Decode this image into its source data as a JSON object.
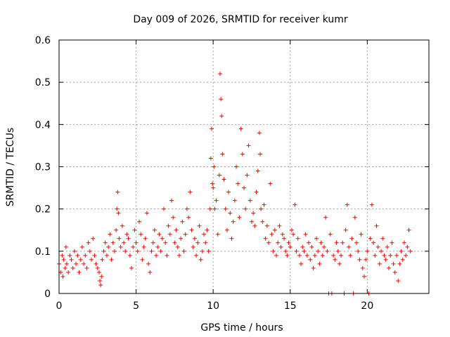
{
  "chart_data": {
    "type": "scatter",
    "title": "Day 009 of 2026, SRMTID for receiver kumr",
    "xlabel": "GPS time / hours",
    "ylabel": "SRMTID / TECUs",
    "xlim": [
      0,
      24
    ],
    "ylim": [
      0,
      0.6
    ],
    "xticks": [
      0,
      5,
      10,
      15,
      20
    ],
    "yticks": [
      0,
      0.1,
      0.2,
      0.3,
      0.4,
      0.5,
      0.6
    ],
    "grid": true,
    "marker": "+",
    "color": "#ff0000",
    "series": [
      {
        "name": "SRMTID",
        "points": [
          [
            0.0,
            0.07
          ],
          [
            0.1,
            0.05
          ],
          [
            0.2,
            0.09
          ],
          [
            0.25,
            0.04
          ],
          [
            0.3,
            0.08
          ],
          [
            0.4,
            0.06
          ],
          [
            0.45,
            0.11
          ],
          [
            0.5,
            0.07
          ],
          [
            0.6,
            0.05
          ],
          [
            0.7,
            0.09
          ],
          [
            0.8,
            0.08
          ],
          [
            0.9,
            0.06
          ],
          [
            1.0,
            0.1
          ],
          [
            1.1,
            0.07
          ],
          [
            1.2,
            0.09
          ],
          [
            1.3,
            0.05
          ],
          [
            1.4,
            0.08
          ],
          [
            1.5,
            0.11
          ],
          [
            1.6,
            0.07
          ],
          [
            1.7,
            0.09
          ],
          [
            1.8,
            0.06
          ],
          [
            1.9,
            0.12
          ],
          [
            2.0,
            0.1
          ],
          [
            2.1,
            0.08
          ],
          [
            2.2,
            0.13
          ],
          [
            2.3,
            0.09
          ],
          [
            2.4,
            0.07
          ],
          [
            2.5,
            0.06
          ],
          [
            2.6,
            0.05
          ],
          [
            2.65,
            0.03
          ],
          [
            2.7,
            0.02
          ],
          [
            2.75,
            0.04
          ],
          [
            2.8,
            0.08
          ],
          [
            2.9,
            0.1
          ],
          [
            3.0,
            0.12
          ],
          [
            3.1,
            0.09
          ],
          [
            3.2,
            0.11
          ],
          [
            3.3,
            0.14
          ],
          [
            3.4,
            0.08
          ],
          [
            3.5,
            0.12
          ],
          [
            3.6,
            0.1
          ],
          [
            3.7,
            0.15
          ],
          [
            3.75,
            0.2
          ],
          [
            3.8,
            0.24
          ],
          [
            3.85,
            0.19
          ],
          [
            3.9,
            0.13
          ],
          [
            4.0,
            0.11
          ],
          [
            4.1,
            0.16
          ],
          [
            4.2,
            0.12
          ],
          [
            4.3,
            0.1
          ],
          [
            4.4,
            0.14
          ],
          [
            4.5,
            0.13
          ],
          [
            4.6,
            0.09
          ],
          [
            4.7,
            0.06
          ],
          [
            4.8,
            0.11
          ],
          [
            4.9,
            0.15
          ],
          [
            5.0,
            0.12
          ],
          [
            5.1,
            0.1
          ],
          [
            5.2,
            0.17
          ],
          [
            5.3,
            0.14
          ],
          [
            5.4,
            0.08
          ],
          [
            5.5,
            0.11
          ],
          [
            5.6,
            0.13
          ],
          [
            5.7,
            0.19
          ],
          [
            5.8,
            0.07
          ],
          [
            5.9,
            0.05
          ],
          [
            6.0,
            0.1
          ],
          [
            6.1,
            0.12
          ],
          [
            6.2,
            0.15
          ],
          [
            6.3,
            0.09
          ],
          [
            6.4,
            0.11
          ],
          [
            6.5,
            0.14
          ],
          [
            6.6,
            0.1
          ],
          [
            6.7,
            0.13
          ],
          [
            6.8,
            0.2
          ],
          [
            6.9,
            0.12
          ],
          [
            7.0,
            0.09
          ],
          [
            7.1,
            0.16
          ],
          [
            7.2,
            0.14
          ],
          [
            7.3,
            0.22
          ],
          [
            7.4,
            0.18
          ],
          [
            7.5,
            0.12
          ],
          [
            7.6,
            0.15
          ],
          [
            7.7,
            0.11
          ],
          [
            7.8,
            0.09
          ],
          [
            7.9,
            0.13
          ],
          [
            8.0,
            0.17
          ],
          [
            8.1,
            0.1
          ],
          [
            8.2,
            0.14
          ],
          [
            8.3,
            0.2
          ],
          [
            8.4,
            0.18
          ],
          [
            8.5,
            0.24
          ],
          [
            8.6,
            0.15
          ],
          [
            8.7,
            0.11
          ],
          [
            8.8,
            0.13
          ],
          [
            8.9,
            0.09
          ],
          [
            9.0,
            0.12
          ],
          [
            9.1,
            0.16
          ],
          [
            9.2,
            0.08
          ],
          [
            9.3,
            0.1
          ],
          [
            9.4,
            0.14
          ],
          [
            9.5,
            0.12
          ],
          [
            9.6,
            0.15
          ],
          [
            9.7,
            0.1
          ],
          [
            9.8,
            0.2
          ],
          [
            9.85,
            0.32
          ],
          [
            9.9,
            0.39
          ],
          [
            9.95,
            0.26
          ],
          [
            10.0,
            0.25
          ],
          [
            10.05,
            0.3
          ],
          [
            10.1,
            0.2
          ],
          [
            10.2,
            0.22
          ],
          [
            10.3,
            0.14
          ],
          [
            10.4,
            0.28
          ],
          [
            10.45,
            0.52
          ],
          [
            10.5,
            0.46
          ],
          [
            10.55,
            0.42
          ],
          [
            10.6,
            0.33
          ],
          [
            10.7,
            0.27
          ],
          [
            10.8,
            0.2
          ],
          [
            10.9,
            0.15
          ],
          [
            11.0,
            0.24
          ],
          [
            11.1,
            0.19
          ],
          [
            11.2,
            0.13
          ],
          [
            11.3,
            0.17
          ],
          [
            11.4,
            0.22
          ],
          [
            11.5,
            0.3
          ],
          [
            11.6,
            0.26
          ],
          [
            11.7,
            0.18
          ],
          [
            11.8,
            0.39
          ],
          [
            11.9,
            0.33
          ],
          [
            12.0,
            0.25
          ],
          [
            12.1,
            0.2
          ],
          [
            12.2,
            0.28
          ],
          [
            12.3,
            0.35
          ],
          [
            12.4,
            0.22
          ],
          [
            12.5,
            0.17
          ],
          [
            12.6,
            0.19
          ],
          [
            12.7,
            0.16
          ],
          [
            12.8,
            0.24
          ],
          [
            12.9,
            0.29
          ],
          [
            13.0,
            0.38
          ],
          [
            13.05,
            0.33
          ],
          [
            13.1,
            0.2
          ],
          [
            13.2,
            0.17
          ],
          [
            13.3,
            0.21
          ],
          [
            13.4,
            0.13
          ],
          [
            13.5,
            0.16
          ],
          [
            13.6,
            0.12
          ],
          [
            13.7,
            0.26
          ],
          [
            13.8,
            0.14
          ],
          [
            13.9,
            0.1
          ],
          [
            14.0,
            0.15
          ],
          [
            14.1,
            0.09
          ],
          [
            14.2,
            0.12
          ],
          [
            14.3,
            0.16
          ],
          [
            14.4,
            0.11
          ],
          [
            14.5,
            0.14
          ],
          [
            14.6,
            0.13
          ],
          [
            14.7,
            0.1
          ],
          [
            14.8,
            0.09
          ],
          [
            14.9,
            0.12
          ],
          [
            15.0,
            0.11
          ],
          [
            15.1,
            0.15
          ],
          [
            15.2,
            0.14
          ],
          [
            15.3,
            0.21
          ],
          [
            15.4,
            0.1
          ],
          [
            15.5,
            0.13
          ],
          [
            15.6,
            0.09
          ],
          [
            15.7,
            0.07
          ],
          [
            15.8,
            0.11
          ],
          [
            15.9,
            0.1
          ],
          [
            16.0,
            0.14
          ],
          [
            16.1,
            0.09
          ],
          [
            16.2,
            0.12
          ],
          [
            16.3,
            0.08
          ],
          [
            16.4,
            0.11
          ],
          [
            16.5,
            0.06
          ],
          [
            16.6,
            0.09
          ],
          [
            16.7,
            0.13
          ],
          [
            16.8,
            0.1
          ],
          [
            16.9,
            0.07
          ],
          [
            17.0,
            0.12
          ],
          [
            17.1,
            0.09
          ],
          [
            17.2,
            0.11
          ],
          [
            17.3,
            0.18
          ],
          [
            17.4,
            0.1
          ],
          [
            17.5,
            0.0
          ],
          [
            17.6,
            0.14
          ],
          [
            17.7,
            0.0
          ],
          [
            17.8,
            0.09
          ],
          [
            17.9,
            0.08
          ],
          [
            18.0,
            0.12
          ],
          [
            18.1,
            0.1
          ],
          [
            18.2,
            0.07
          ],
          [
            18.3,
            0.09
          ],
          [
            18.4,
            0.12
          ],
          [
            18.5,
            0.0
          ],
          [
            18.6,
            0.15
          ],
          [
            18.7,
            0.21
          ],
          [
            18.8,
            0.11
          ],
          [
            18.9,
            0.09
          ],
          [
            19.0,
            0.13
          ],
          [
            19.1,
            0.0
          ],
          [
            19.2,
            0.18
          ],
          [
            19.3,
            0.12
          ],
          [
            19.4,
            0.1
          ],
          [
            19.5,
            0.08
          ],
          [
            19.6,
            0.14
          ],
          [
            19.7,
            0.06
          ],
          [
            19.8,
            0.04
          ],
          [
            19.9,
            0.08
          ],
          [
            20.0,
            0.1
          ],
          [
            20.1,
            0.0
          ],
          [
            20.2,
            0.13
          ],
          [
            20.3,
            0.21
          ],
          [
            20.4,
            0.12
          ],
          [
            20.5,
            0.09
          ],
          [
            20.6,
            0.16
          ],
          [
            20.7,
            0.11
          ],
          [
            20.8,
            0.07
          ],
          [
            20.9,
            0.1
          ],
          [
            21.0,
            0.13
          ],
          [
            21.1,
            0.09
          ],
          [
            21.2,
            0.08
          ],
          [
            21.3,
            0.11
          ],
          [
            21.4,
            0.06
          ],
          [
            21.5,
            0.09
          ],
          [
            21.6,
            0.12
          ],
          [
            21.7,
            0.07
          ],
          [
            21.8,
            0.05
          ],
          [
            21.9,
            0.09
          ],
          [
            22.0,
            0.03
          ],
          [
            22.1,
            0.07
          ],
          [
            22.2,
            0.1
          ],
          [
            22.3,
            0.08
          ],
          [
            22.4,
            0.12
          ],
          [
            22.5,
            0.09
          ],
          [
            22.6,
            0.11
          ],
          [
            22.7,
            0.15
          ],
          [
            22.8,
            0.1
          ]
        ]
      }
    ]
  }
}
